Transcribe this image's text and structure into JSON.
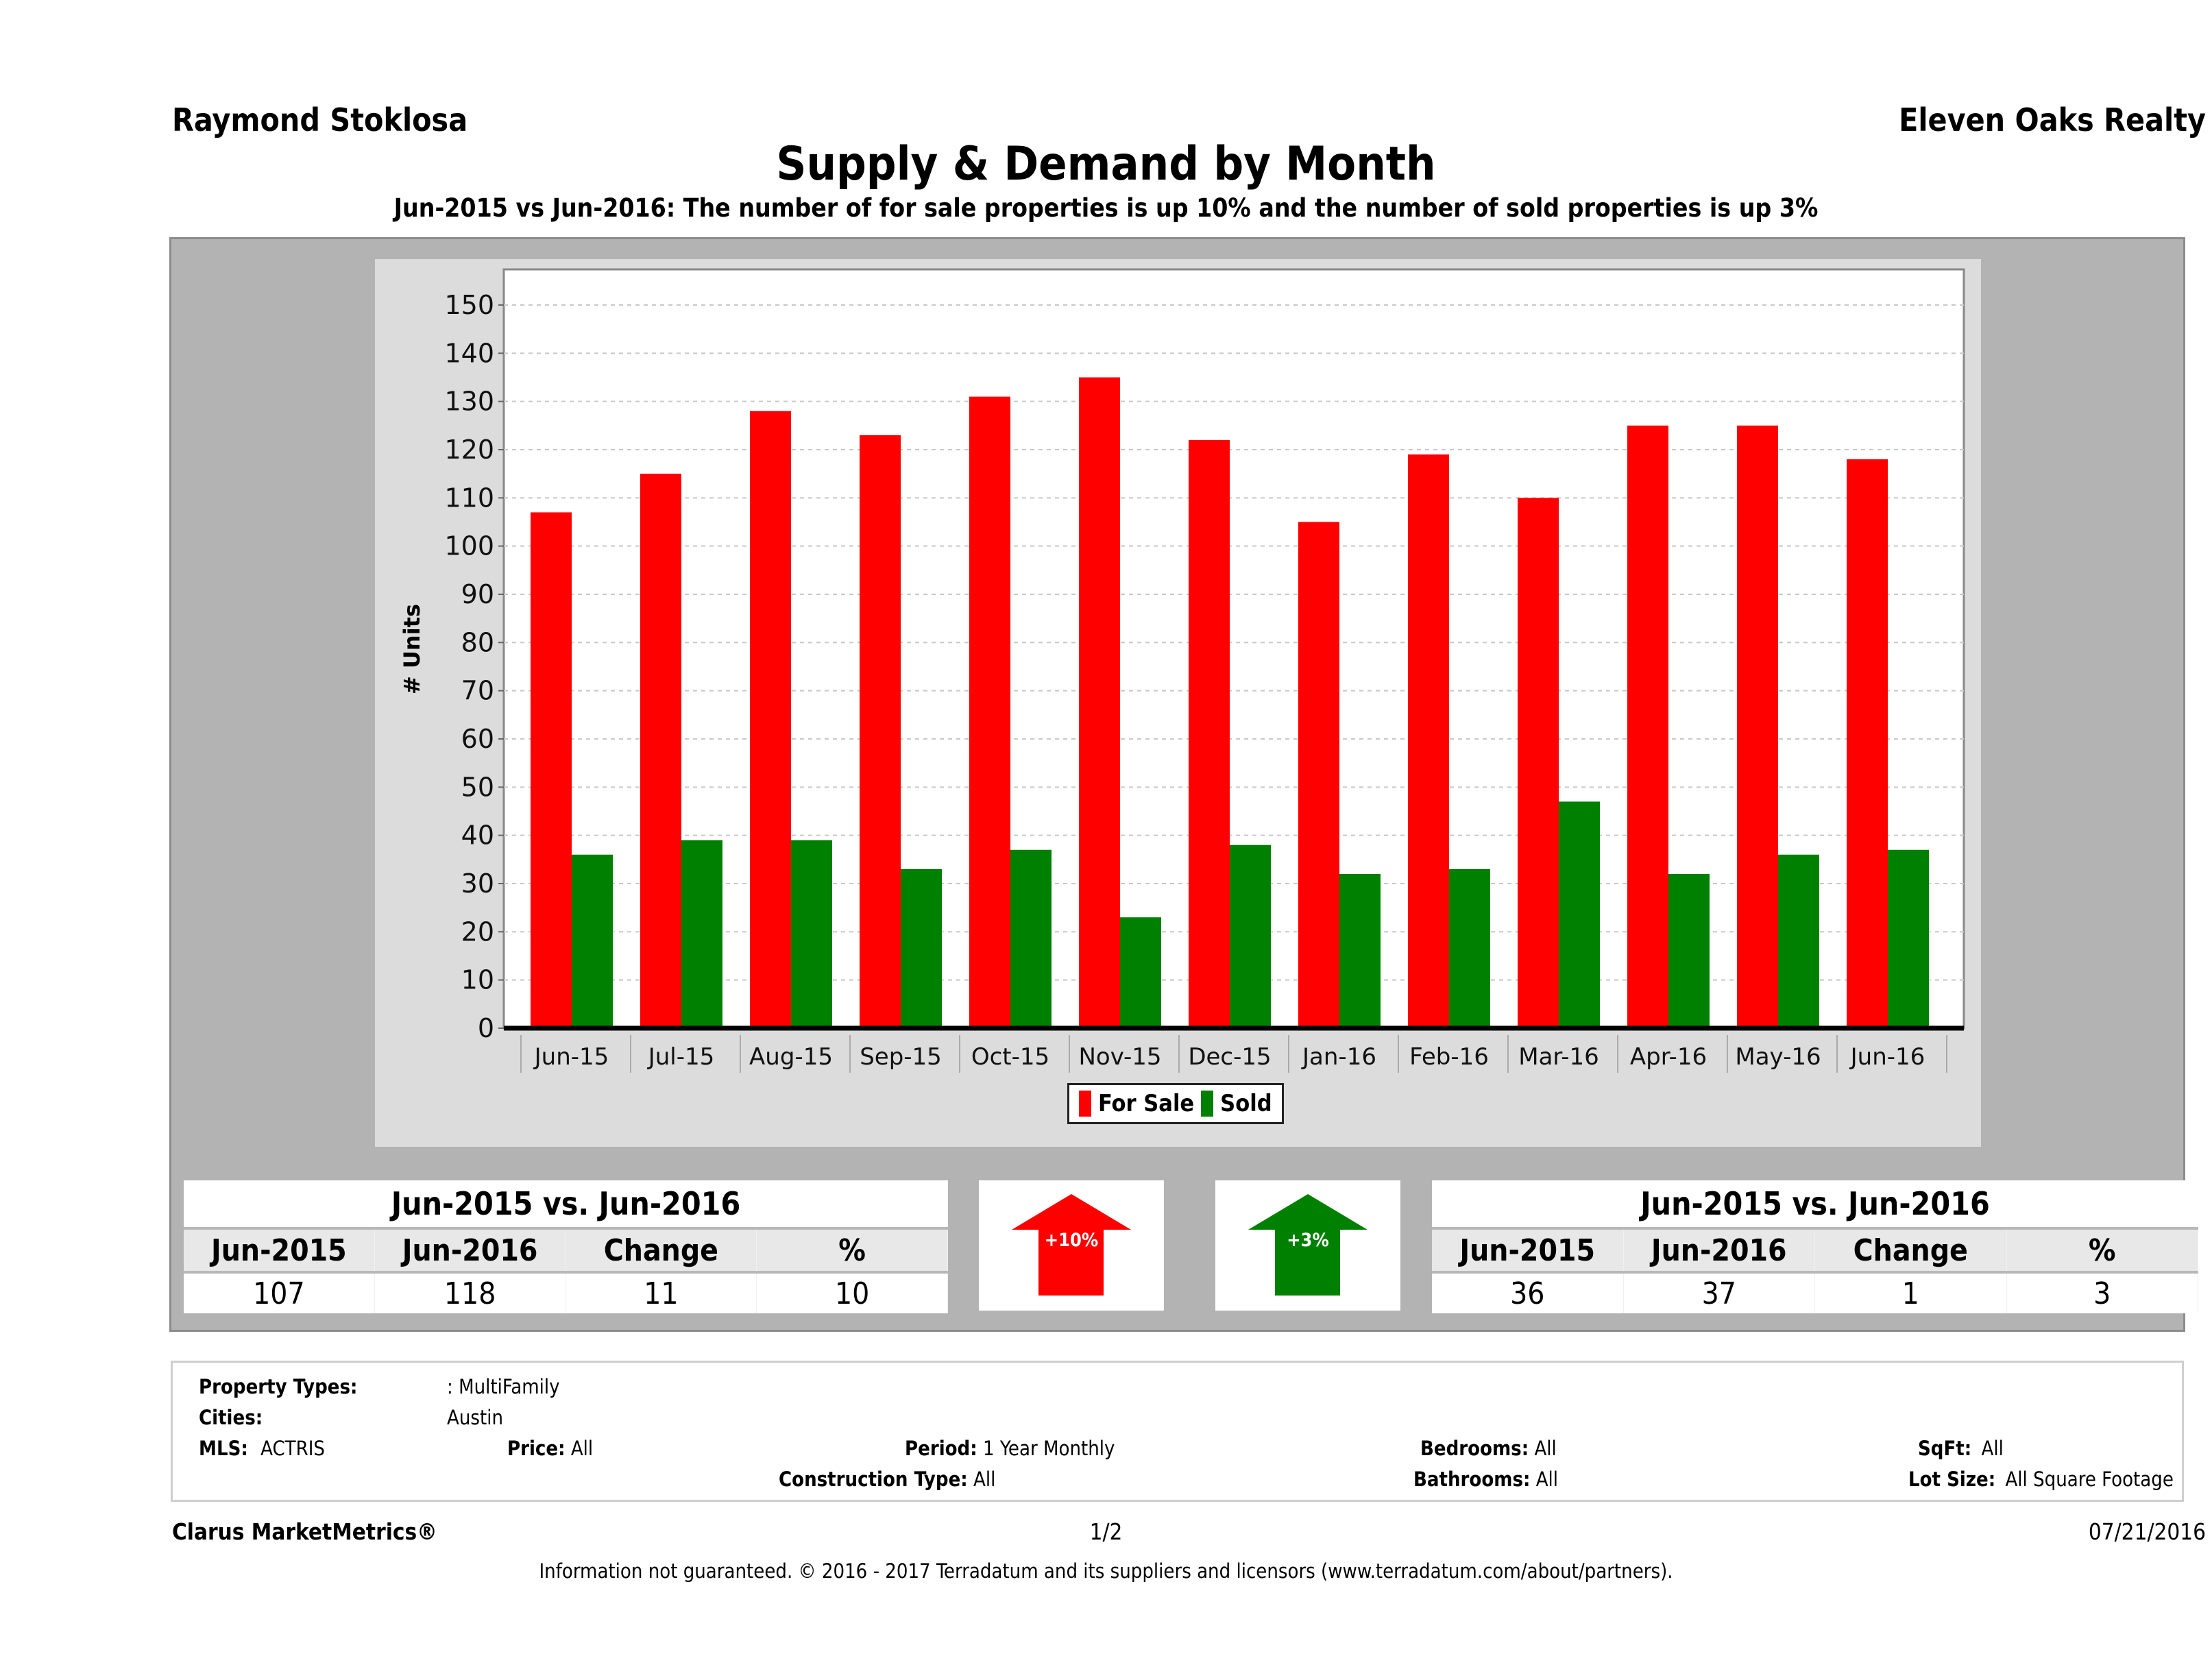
{
  "header": {
    "agent": "Raymond Stoklosa",
    "company": "Eleven Oaks Realty",
    "title": "Supply & Demand by Month",
    "subtitle": "Jun-2015 vs Jun-2016: The number of for sale properties is up 10% and the number of sold properties is up 3%"
  },
  "colors": {
    "for_sale": "#ff0000",
    "sold": "#008000"
  },
  "chart_data": {
    "type": "bar",
    "title": "Supply & Demand by Month",
    "xlabel": "",
    "ylabel": "# Units",
    "ylim": [
      0,
      150
    ],
    "yticks": [
      0,
      10,
      20,
      30,
      40,
      50,
      60,
      70,
      80,
      90,
      100,
      110,
      120,
      130,
      140,
      150
    ],
    "grid": true,
    "legend_position": "bottom-center",
    "categories": [
      "Jun-15",
      "Jul-15",
      "Aug-15",
      "Sep-15",
      "Oct-15",
      "Nov-15",
      "Dec-15",
      "Jan-16",
      "Feb-16",
      "Mar-16",
      "Apr-16",
      "May-16",
      "Jun-16"
    ],
    "series": [
      {
        "name": "For Sale",
        "color": "#ff0000",
        "values": [
          107,
          115,
          128,
          123,
          131,
          135,
          122,
          105,
          119,
          110,
          125,
          125,
          118
        ]
      },
      {
        "name": "Sold",
        "color": "#008000",
        "values": [
          36,
          39,
          39,
          33,
          37,
          23,
          38,
          32,
          33,
          47,
          32,
          36,
          37
        ]
      }
    ]
  },
  "legend": {
    "for_sale": "For Sale",
    "sold": "Sold"
  },
  "for_sale_summary": {
    "title": "Jun-2015 vs. Jun-2016",
    "headers": [
      "Jun-2015",
      "Jun-2016",
      "Change",
      "%"
    ],
    "values": [
      "107",
      "118",
      "11",
      "10"
    ],
    "arrow_label": "+10%",
    "arrow_direction": "up"
  },
  "sold_summary": {
    "title": "Jun-2015 vs. Jun-2016",
    "headers": [
      "Jun-2015",
      "Jun-2016",
      "Change",
      "%"
    ],
    "values": [
      "36",
      "37",
      "1",
      "3"
    ],
    "arrow_label": "+3%",
    "arrow_direction": "up"
  },
  "criteria": {
    "property_types_label": "Property Types:",
    "property_types_value": ": MultiFamily",
    "cities_label": "Cities:",
    "cities_value": "Austin",
    "mls_label": "MLS:",
    "mls_value": "ACTRIS",
    "price_label": "Price:",
    "price_value": "All",
    "period_label": "Period:",
    "period_value": "1 Year Monthly",
    "construction_label": "Construction Type:",
    "construction_value": "All",
    "bedrooms_label": "Bedrooms:",
    "bedrooms_value": "All",
    "bathrooms_label": "Bathrooms:",
    "bathrooms_value": "All",
    "sqft_label": "SqFt:",
    "sqft_value": "All",
    "lot_label": "Lot Size:",
    "lot_value": "All Square Footage"
  },
  "footer": {
    "brand": "Clarus MarketMetrics®",
    "page": "1/2",
    "date": "07/21/2016",
    "disclaimer": "Information not guaranteed. © 2016 - 2017 Terradatum and its suppliers and licensors (www.terradatum.com/about/partners)."
  }
}
